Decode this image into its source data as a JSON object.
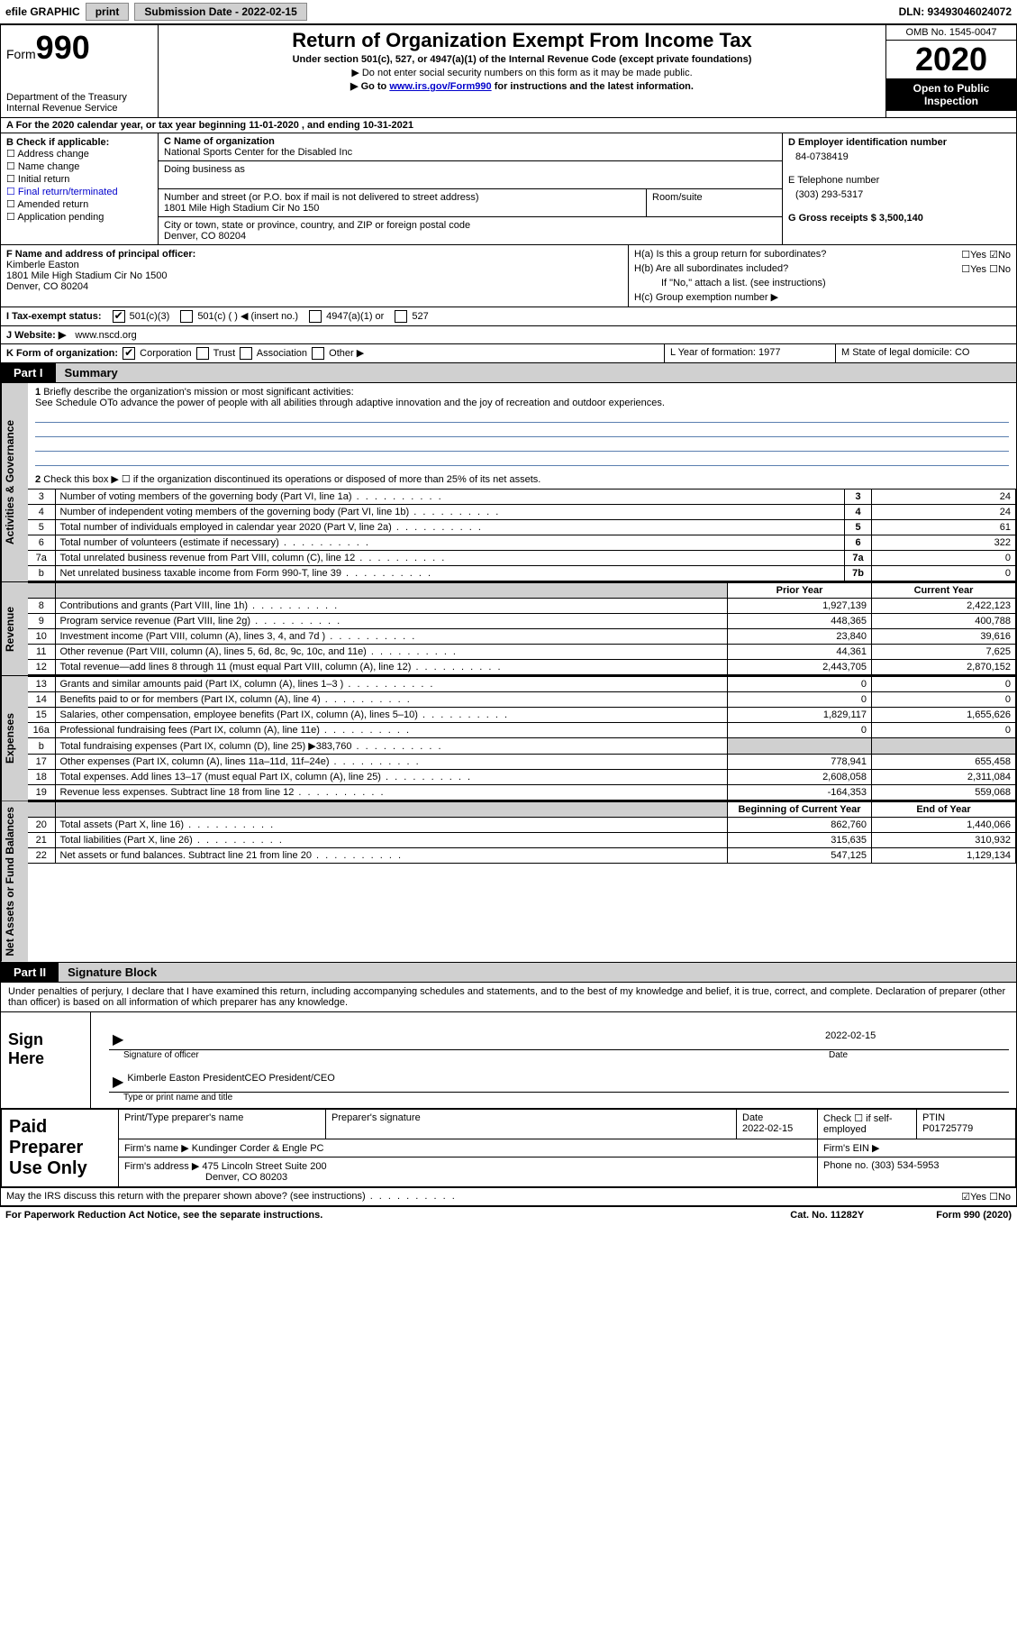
{
  "topbar": {
    "efile_label": "efile GRAPHIC",
    "print_label": "print",
    "submission_label": "Submission Date - 2022-02-15",
    "dln_label": "DLN: 93493046024072"
  },
  "header": {
    "form_label": "Form",
    "form_number": "990",
    "dept": "Department of the Treasury\nInternal Revenue Service",
    "title": "Return of Organization Exempt From Income Tax",
    "sub1": "Under section 501(c), 527, or 4947(a)(1) of the Internal Revenue Code (except private foundations)",
    "sub2": "▶ Do not enter social security numbers on this form as it may be made public.",
    "sub3_pre": "▶ Go to ",
    "sub3_link": "www.irs.gov/Form990",
    "sub3_post": " for instructions and the latest information.",
    "omb": "OMB No. 1545-0047",
    "year": "2020",
    "inspect": "Open to Public Inspection"
  },
  "line_a": "A For the 2020 calendar year, or tax year beginning 11-01-2020    , and ending 10-31-2021",
  "col_b": {
    "header": "B Check if applicable:",
    "items": [
      "Address change",
      "Name change",
      "Initial return",
      "Final return/terminated",
      "Amended return",
      "Application pending"
    ]
  },
  "col_c": {
    "c_label": "C Name of organization",
    "org_name": "National Sports Center for the Disabled Inc",
    "dba_label": "Doing business as",
    "dba": "",
    "addr_label": "Number and street (or P.O. box if mail is not delivered to street address)",
    "addr": "1801 Mile High Stadium Cir No 150",
    "room_label": "Room/suite",
    "room": "",
    "city_label": "City or town, state or province, country, and ZIP or foreign postal code",
    "city": "Denver, CO  80204"
  },
  "col_de": {
    "d_label": "D Employer identification number",
    "d_val": "84-0738419",
    "e_label": "E Telephone number",
    "e_val": "(303) 293-5317",
    "g_label": "G Gross receipts $ 3,500,140"
  },
  "fgh": {
    "f_label": "F Name and address of principal officer:",
    "f_name": "Kimberle Easton",
    "f_addr1": "1801 Mile High Stadium Cir No 1500",
    "f_addr2": "Denver, CO  80204",
    "ha_label": "H(a)  Is this a group return for subordinates?",
    "hb_label": "H(b)  Are all subordinates included?",
    "hb_note": "If \"No,\" attach a list. (see instructions)",
    "hc_label": "H(c)  Group exemption number ▶",
    "yes": "Yes",
    "no": "No"
  },
  "line_i": {
    "label": "I  Tax-exempt status:",
    "opts": [
      "501(c)(3)",
      "501(c) (  ) ◀ (insert no.)",
      "4947(a)(1) or",
      "527"
    ]
  },
  "line_j": {
    "label": "J  Website: ▶",
    "val": "www.nscd.org"
  },
  "line_k": {
    "label": "K Form of organization:",
    "opts": [
      "Corporation",
      "Trust",
      "Association",
      "Other ▶"
    ]
  },
  "line_lm": {
    "l": "L Year of formation: 1977",
    "m": "M State of legal domicile: CO"
  },
  "part1": {
    "tag": "Part I",
    "title": "Summary"
  },
  "q1": {
    "num": "1",
    "text": "Briefly describe the organization's mission or most significant activities:",
    "answer": "See Schedule OTo advance the power of people with all abilities through adaptive innovation and the joy of recreation and outdoor experiences."
  },
  "q2": {
    "num": "2",
    "text": "Check this box ▶ ☐  if the organization discontinued its operations or disposed of more than 25% of its net assets."
  },
  "rows_gov": [
    {
      "n": "3",
      "d": "Number of voting members of the governing body (Part VI, line 1a)",
      "b": "3",
      "v": "24"
    },
    {
      "n": "4",
      "d": "Number of independent voting members of the governing body (Part VI, line 1b)",
      "b": "4",
      "v": "24"
    },
    {
      "n": "5",
      "d": "Total number of individuals employed in calendar year 2020 (Part V, line 2a)",
      "b": "5",
      "v": "61"
    },
    {
      "n": "6",
      "d": "Total number of volunteers (estimate if necessary)",
      "b": "6",
      "v": "322"
    },
    {
      "n": "7a",
      "d": "Total unrelated business revenue from Part VIII, column (C), line 12",
      "b": "7a",
      "v": "0"
    },
    {
      "n": "b",
      "d": "Net unrelated business taxable income from Form 990-T, line 39",
      "b": "7b",
      "v": "0"
    }
  ],
  "rev_hdr": {
    "prior": "Prior Year",
    "current": "Current Year"
  },
  "rows_rev": [
    {
      "n": "8",
      "d": "Contributions and grants (Part VIII, line 1h)",
      "p": "1,927,139",
      "c": "2,422,123"
    },
    {
      "n": "9",
      "d": "Program service revenue (Part VIII, line 2g)",
      "p": "448,365",
      "c": "400,788"
    },
    {
      "n": "10",
      "d": "Investment income (Part VIII, column (A), lines 3, 4, and 7d )",
      "p": "23,840",
      "c": "39,616"
    },
    {
      "n": "11",
      "d": "Other revenue (Part VIII, column (A), lines 5, 6d, 8c, 9c, 10c, and 11e)",
      "p": "44,361",
      "c": "7,625"
    },
    {
      "n": "12",
      "d": "Total revenue—add lines 8 through 11 (must equal Part VIII, column (A), line 12)",
      "p": "2,443,705",
      "c": "2,870,152"
    }
  ],
  "rows_exp": [
    {
      "n": "13",
      "d": "Grants and similar amounts paid (Part IX, column (A), lines 1–3 )",
      "p": "0",
      "c": "0"
    },
    {
      "n": "14",
      "d": "Benefits paid to or for members (Part IX, column (A), line 4)",
      "p": "0",
      "c": "0"
    },
    {
      "n": "15",
      "d": "Salaries, other compensation, employee benefits (Part IX, column (A), lines 5–10)",
      "p": "1,829,117",
      "c": "1,655,626"
    },
    {
      "n": "16a",
      "d": "Professional fundraising fees (Part IX, column (A), line 11e)",
      "p": "0",
      "c": "0"
    },
    {
      "n": "b",
      "d": "Total fundraising expenses (Part IX, column (D), line 25) ▶383,760",
      "p": "",
      "c": "",
      "gray": true
    },
    {
      "n": "17",
      "d": "Other expenses (Part IX, column (A), lines 11a–11d, 11f–24e)",
      "p": "778,941",
      "c": "655,458"
    },
    {
      "n": "18",
      "d": "Total expenses. Add lines 13–17 (must equal Part IX, column (A), line 25)",
      "p": "2,608,058",
      "c": "2,311,084"
    },
    {
      "n": "19",
      "d": "Revenue less expenses. Subtract line 18 from line 12",
      "p": "-164,353",
      "c": "559,068"
    }
  ],
  "net_hdr": {
    "beg": "Beginning of Current Year",
    "end": "End of Year"
  },
  "rows_net": [
    {
      "n": "20",
      "d": "Total assets (Part X, line 16)",
      "p": "862,760",
      "c": "1,440,066"
    },
    {
      "n": "21",
      "d": "Total liabilities (Part X, line 26)",
      "p": "315,635",
      "c": "310,932"
    },
    {
      "n": "22",
      "d": "Net assets or fund balances. Subtract line 21 from line 20",
      "p": "547,125",
      "c": "1,129,134"
    }
  ],
  "vtabs": {
    "gov": "Activities & Governance",
    "rev": "Revenue",
    "exp": "Expenses",
    "net": "Net Assets or Fund Balances"
  },
  "part2": {
    "tag": "Part II",
    "title": "Signature Block"
  },
  "sig_decl": "Under penalties of perjury, I declare that I have examined this return, including accompanying schedules and statements, and to the best of my knowledge and belief, it is true, correct, and complete. Declaration of preparer (other than officer) is based on all information of which preparer has any knowledge.",
  "sign_here": "Sign Here",
  "sig_officer_label": "Signature of officer",
  "sig_date": "2022-02-15",
  "sig_date_label": "Date",
  "sig_name": "Kimberle Easton PresidentCEO  President/CEO",
  "sig_name_label": "Type or print name and title",
  "paid_prep": "Paid Preparer Use Only",
  "prep": {
    "h1": "Print/Type preparer's name",
    "h2": "Preparer's signature",
    "h3": "Date",
    "h3v": "2022-02-15",
    "h4": "Check ☐ if self-employed",
    "h5": "PTIN",
    "h5v": "P01725779",
    "firm_name_l": "Firm's name    ▶",
    "firm_name": "Kundinger Corder & Engle PC",
    "firm_ein_l": "Firm's EIN ▶",
    "firm_addr_l": "Firm's address ▶",
    "firm_addr": "475 Lincoln Street Suite 200",
    "firm_city": "Denver, CO  80203",
    "phone_l": "Phone no.",
    "phone": "(303) 534-5953"
  },
  "discuss": "May the IRS discuss this return with the preparer shown above? (see instructions)",
  "footer": {
    "left": "For Paperwork Reduction Act Notice, see the separate instructions.",
    "mid": "Cat. No. 11282Y",
    "right": "Form 990 (2020)"
  },
  "colors": {
    "gray": "#d0d0d0",
    "link": "#0000cc",
    "underline": "#5a7fb0"
  }
}
